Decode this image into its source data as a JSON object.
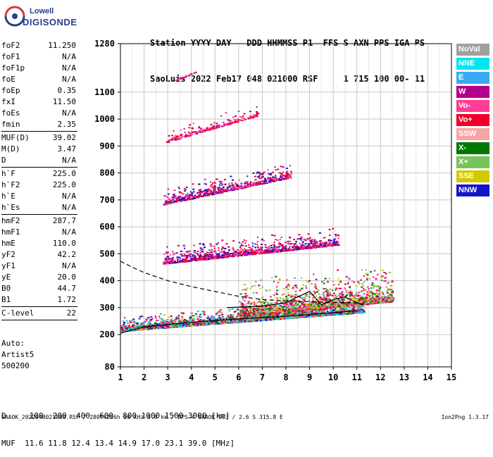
{
  "logo": {
    "top": "Lowell",
    "bottom": "DIGISONDE"
  },
  "header": {
    "line1": "Station YYYY DAY   DDD HHMMSS P1  FFS S AXN PPS IGA PS",
    "line2": "SaoLuis 2022 Feb17 048 021000 RSF     1 715 100 00- 11"
  },
  "params": [
    {
      "group": 1,
      "key": "foF2",
      "value": "11.250"
    },
    {
      "group": 1,
      "key": "foF1",
      "value": "N/A"
    },
    {
      "group": 1,
      "key": "foF1p",
      "value": "N/A"
    },
    {
      "group": 1,
      "key": "foE",
      "value": "N/A"
    },
    {
      "group": 1,
      "key": "foEp",
      "value": "0.35"
    },
    {
      "group": 1,
      "key": "fxI",
      "value": "11.50"
    },
    {
      "group": 1,
      "key": "foEs",
      "value": "N/A"
    },
    {
      "group": 1,
      "key": "fmin",
      "value": "2.35"
    },
    {
      "group": 2,
      "key": "MUF(D)",
      "value": "39.02"
    },
    {
      "group": 2,
      "key": "M(D)",
      "value": "3.47"
    },
    {
      "group": 2,
      "key": "D",
      "value": "N/A"
    },
    {
      "group": 3,
      "key": "h`F",
      "value": "225.0"
    },
    {
      "group": 3,
      "key": "h`F2",
      "value": "225.0"
    },
    {
      "group": 3,
      "key": "h`E",
      "value": "N/A"
    },
    {
      "group": 3,
      "key": "h`Es",
      "value": "N/A"
    },
    {
      "group": 4,
      "key": "hmF2",
      "value": "287.7"
    },
    {
      "group": 4,
      "key": "hmF1",
      "value": "N/A"
    },
    {
      "group": 4,
      "key": "hmE",
      "value": "110.0"
    },
    {
      "group": 4,
      "key": "yF2",
      "value": "42.2"
    },
    {
      "group": 4,
      "key": "yF1",
      "value": "N/A"
    },
    {
      "group": 4,
      "key": "yE",
      "value": "20.0"
    },
    {
      "group": 4,
      "key": "B0",
      "value": "44.7"
    },
    {
      "group": 4,
      "key": "B1",
      "value": "1.72"
    },
    {
      "group": 5,
      "key": "C-level",
      "value": "22"
    }
  ],
  "auto": {
    "line1": "Auto:",
    "line2": "Artist5",
    "line3": "500200"
  },
  "legend": [
    {
      "label": "NoVal",
      "color": "#a0a0a0"
    },
    {
      "label": "NNE",
      "color": "#00e6f0"
    },
    {
      "label": "E",
      "color": "#3caaf0"
    },
    {
      "label": "W",
      "color": "#b4008c"
    },
    {
      "label": "Vo-",
      "color": "#ff3c96"
    },
    {
      "label": "Vo+",
      "color": "#f00028"
    },
    {
      "label": "SSW",
      "color": "#f5a5a5"
    },
    {
      "label": "X-",
      "color": "#007800"
    },
    {
      "label": "X+",
      "color": "#78c35a"
    },
    {
      "label": "SSE",
      "color": "#d2c800"
    },
    {
      "label": "NNW",
      "color": "#1414c8"
    }
  ],
  "muf_table": {
    "line1": "D     100  200  400  600  800 1000 1500 3000 [km]",
    "line2": "MUF  11.6 11.8 12.4 13.4 14.9 17.0 23.1 39.0 [MHz]"
  },
  "footer": {
    "left": "SAAOK_2022048021000.RSF / 280fx256h 50 kHz 5.0 km / DPS-4 SAAOK 903 / 2.6 S 315.8 E",
    "right": "Ion2Png 1.3.17"
  },
  "chart_data": {
    "type": "scatter",
    "title": "",
    "xlabel": "",
    "ylabel": "",
    "xlim": [
      1,
      15
    ],
    "ylim": [
      80,
      1280
    ],
    "x_ticks": [
      1,
      2,
      3,
      4,
      5,
      6,
      7,
      8,
      9,
      10,
      11,
      12,
      13,
      14,
      15
    ],
    "y_ticks": [
      80,
      200,
      300,
      400,
      500,
      600,
      700,
      800,
      900,
      1000,
      1100,
      1280
    ],
    "grid": true,
    "traces": [
      {
        "name": "profile lower",
        "style": "solid",
        "x": [
          1.0,
          2.0,
          4.0,
          6.0,
          8.0,
          10.0,
          11.0
        ],
        "y": [
          205,
          228,
          246,
          258,
          268,
          281,
          289
        ]
      },
      {
        "name": "profile upper",
        "style": "dashed",
        "x": [
          1.0,
          1.5,
          2.0,
          3.0,
          4.0,
          5.0,
          6.0,
          7.0,
          8.0,
          9.0,
          10.0,
          10.8,
          11.25
        ],
        "y": [
          472,
          450,
          430,
          400,
          378,
          360,
          342,
          330,
          325,
          322,
          320,
          318,
          315
        ]
      },
      {
        "name": "profile wiggle",
        "style": "solid",
        "x": [
          5.5,
          7.0,
          8.0,
          8.5,
          9.0,
          9.5,
          10.0,
          10.5,
          11.0,
          11.25
        ],
        "y": [
          300,
          305,
          318,
          340,
          360,
          310,
          330,
          340,
          318,
          310
        ]
      }
    ],
    "echo_bands": [
      {
        "label": "F-layer",
        "x0": 1.0,
        "x1": 11.3,
        "y0": 220,
        "y1": 290,
        "thickness": 60,
        "density": 2600,
        "colors": [
          "#1414c8",
          "#f00028",
          "#ff3c96",
          "#3caaf0",
          "#00e6f0",
          "#007800",
          "#78c35a",
          "#d2c800",
          "#b4008c"
        ]
      },
      {
        "label": "F-layer spread",
        "x0": 6.0,
        "x1": 12.5,
        "y0": 270,
        "y1": 330,
        "thickness": 150,
        "density": 1800,
        "colors": [
          "#f00028",
          "#ff3c96",
          "#78c35a",
          "#d2c800",
          "#007800",
          "#a0a0a0",
          "#b4008c"
        ]
      },
      {
        "label": "2nd hop",
        "x0": 2.8,
        "x1": 10.2,
        "y0": 470,
        "y1": 540,
        "thickness": 70,
        "density": 1100,
        "colors": [
          "#1414c8",
          "#f00028",
          "#ff3c96",
          "#b4008c"
        ]
      },
      {
        "label": "3rd hop",
        "x0": 2.8,
        "x1": 8.2,
        "y0": 690,
        "y1": 790,
        "thickness": 70,
        "density": 600,
        "colors": [
          "#1414c8",
          "#f00028",
          "#ff3c96",
          "#b4008c"
        ]
      },
      {
        "label": "4th hop",
        "x0": 2.9,
        "x1": 6.8,
        "y0": 920,
        "y1": 1020,
        "thickness": 50,
        "density": 220,
        "colors": [
          "#f00028",
          "#ff3c96",
          "#b4008c"
        ]
      },
      {
        "label": "5th hop",
        "x0": 3.3,
        "x1": 4.2,
        "y0": 1150,
        "y1": 1180,
        "thickness": 15,
        "density": 25,
        "colors": [
          "#ff3c96",
          "#b4008c"
        ]
      }
    ]
  }
}
